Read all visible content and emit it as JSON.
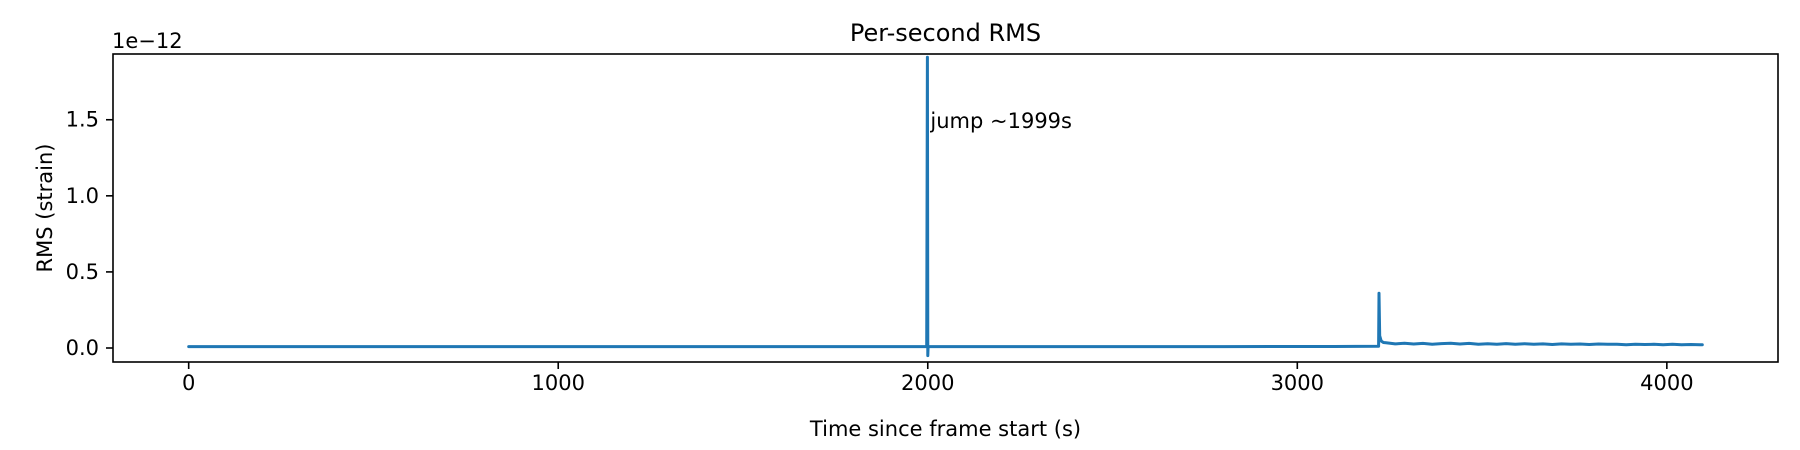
{
  "figure": {
    "title": "Per-second RMS",
    "xlabel": "Time since frame start (s)",
    "ylabel": "RMS (strain)",
    "offset_text": "1e−12",
    "annotation_text": "jump ~1999s",
    "background_color": "#ffffff",
    "line_color": "#1f77b4",
    "axis_color": "#000000"
  },
  "chart_data": {
    "type": "line",
    "title": "Per-second RMS",
    "xlabel": "Time since frame start (s)",
    "ylabel": "RMS (strain)",
    "y_offset_multiplier": "1e−12",
    "y_units_note": "y values below are in units of 1e-12 strain",
    "xlim": [
      -204.8,
      4300.8
    ],
    "ylim": [
      -0.092,
      1.932
    ],
    "xticks": [
      0,
      1000,
      2000,
      3000,
      4000
    ],
    "xtick_labels": [
      "0",
      "1000",
      "2000",
      "3000",
      "4000"
    ],
    "yticks": [
      0.0,
      0.5,
      1.0,
      1.5
    ],
    "ytick_labels": [
      "0.0",
      "0.5",
      "1.0",
      "1.5"
    ],
    "grid": false,
    "legend_position": "none",
    "line_color": "#1f77b4",
    "annotation": {
      "text": "jump ~1999s",
      "x": 1999,
      "y": 1.46
    },
    "features": {
      "baseline_level": 0.009,
      "main_spike": {
        "t": 1999,
        "peak": 1.91,
        "undershoot": -0.05
      },
      "secondary_spike": {
        "t": 3221,
        "peak": 0.36
      },
      "post_spike_tail": {
        "start_t": 3225,
        "level_start": 0.034,
        "level_end": 0.022
      },
      "t_end": 4096
    },
    "series": [
      {
        "name": "per-second RMS",
        "points": [
          [
            0,
            0.009
          ],
          [
            400,
            0.009
          ],
          [
            800,
            0.009
          ],
          [
            1200,
            0.009
          ],
          [
            1600,
            0.009
          ],
          [
            1997,
            0.009
          ],
          [
            1999,
            1.91
          ],
          [
            2000,
            -0.05
          ],
          [
            2001,
            0.009
          ],
          [
            2400,
            0.009
          ],
          [
            2800,
            0.0095
          ],
          [
            3100,
            0.01
          ],
          [
            3217,
            0.011
          ],
          [
            3220,
            0.012
          ],
          [
            3221,
            0.36
          ],
          [
            3223,
            0.08
          ],
          [
            3227,
            0.046
          ],
          [
            3233,
            0.036
          ],
          [
            3240,
            0.034
          ],
          [
            3265,
            0.027
          ],
          [
            3290,
            0.031
          ],
          [
            3315,
            0.026
          ],
          [
            3340,
            0.03
          ],
          [
            3365,
            0.025
          ],
          [
            3390,
            0.029
          ],
          [
            3415,
            0.031
          ],
          [
            3440,
            0.026
          ],
          [
            3465,
            0.03
          ],
          [
            3490,
            0.025
          ],
          [
            3515,
            0.028
          ],
          [
            3540,
            0.024
          ],
          [
            3565,
            0.029
          ],
          [
            3590,
            0.025
          ],
          [
            3615,
            0.028
          ],
          [
            3640,
            0.024
          ],
          [
            3665,
            0.027
          ],
          [
            3690,
            0.023
          ],
          [
            3715,
            0.027
          ],
          [
            3740,
            0.024
          ],
          [
            3765,
            0.026
          ],
          [
            3790,
            0.023
          ],
          [
            3815,
            0.026
          ],
          [
            3840,
            0.024
          ],
          [
            3865,
            0.025
          ],
          [
            3890,
            0.022
          ],
          [
            3915,
            0.025
          ],
          [
            3940,
            0.023
          ],
          [
            3965,
            0.024
          ],
          [
            3990,
            0.022
          ],
          [
            4015,
            0.024
          ],
          [
            4040,
            0.022
          ],
          [
            4065,
            0.023
          ],
          [
            4090,
            0.022
          ],
          [
            4096,
            0.022
          ]
        ]
      }
    ]
  }
}
